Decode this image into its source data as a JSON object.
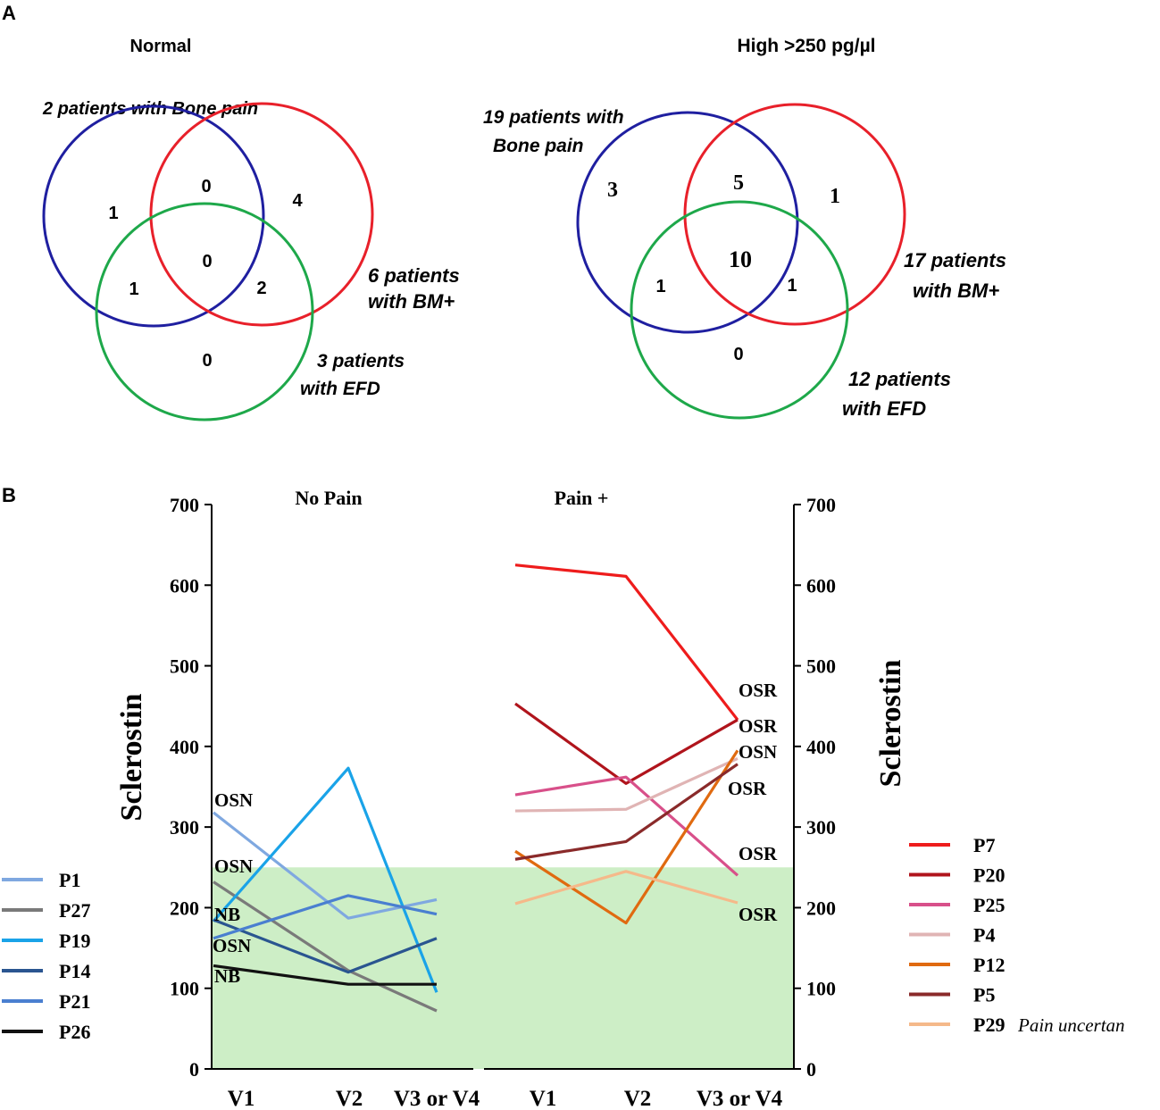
{
  "panel_a": {
    "label": "A",
    "venns": [
      {
        "title": "Normal",
        "bone_pain_label": "2 patients with Bone pain",
        "bm_label": [
          "6 patients",
          "with BM+"
        ],
        "efd_label": [
          "3 patients",
          "with EFD"
        ],
        "regions": {
          "bone_only": "1",
          "bone_bm": "0",
          "bm_only": "4",
          "all_three": "0",
          "bone_efd": "1",
          "bm_efd": "2",
          "efd_only": "0"
        }
      },
      {
        "title": "High >250 pg/µl",
        "bone_pain_label": [
          "19 patients with",
          "Bone pain"
        ],
        "bm_label": [
          "17 patients",
          "with BM+"
        ],
        "efd_label": [
          "12 patients",
          "with EFD"
        ],
        "regions": {
          "bone_only": "3",
          "bone_bm": "5",
          "bm_only": "1",
          "all_three": "10",
          "bone_efd": "1",
          "bm_efd": "1",
          "efd_only": "0"
        }
      }
    ],
    "colors": {
      "bone_pain": "#1f1fa0",
      "bm": "#e8202a",
      "efd": "#1ea84a"
    }
  },
  "panel_b": {
    "label": "B",
    "y_axis_label": "Sclerostin",
    "normal_range_color": "#cdeec6",
    "normal_range_max": 250,
    "legend_left": [
      {
        "id": "P1",
        "color": "#7fa8e0"
      },
      {
        "id": "P27",
        "color": "#7a7a7a"
      },
      {
        "id": "P19",
        "color": "#1aa3e8"
      },
      {
        "id": "P14",
        "color": "#2a5590"
      },
      {
        "id": "P21",
        "color": "#4a7fd0"
      },
      {
        "id": "P26",
        "color": "#111111"
      }
    ],
    "legend_right": [
      {
        "id": "P7",
        "color": "#ee1c1c"
      },
      {
        "id": "P20",
        "color": "#b0141c"
      },
      {
        "id": "P25",
        "color": "#d8508a"
      },
      {
        "id": "P4",
        "color": "#e0b4b4"
      },
      {
        "id": "P12",
        "color": "#e06a10"
      },
      {
        "id": "P5",
        "color": "#8a2a2a"
      },
      {
        "id": "P29",
        "color": "#f5b98a",
        "note": "Pain uncertan"
      }
    ]
  },
  "chart_data": {
    "type": "line",
    "ylabel": "Sclerostin",
    "ylim": [
      0,
      700
    ],
    "yticks": [
      0,
      100,
      200,
      300,
      400,
      500,
      600,
      700
    ],
    "groups": [
      {
        "title": "No Pain",
        "categories": [
          "V1",
          "V2",
          "V3 or V4"
        ],
        "point_labels": [
          "OSN",
          "OSN",
          "NB",
          "OSN",
          "NB"
        ],
        "series": [
          {
            "name": "P1",
            "values": [
              318,
              187,
              210
            ]
          },
          {
            "name": "P27",
            "values": [
              232,
              122,
              72
            ]
          },
          {
            "name": "P19",
            "values": [
              183,
              373,
              95
            ]
          },
          {
            "name": "P14",
            "values": [
              185,
              120,
              162
            ]
          },
          {
            "name": "P21",
            "values": [
              162,
              215,
              192
            ]
          },
          {
            "name": "P26",
            "values": [
              128,
              105,
              105
            ]
          }
        ]
      },
      {
        "title": "Pain +",
        "categories": [
          "V1",
          "V2",
          "V3 or V4"
        ],
        "point_labels": [
          "OSR",
          "OSR",
          "OSN",
          "OSR",
          "OSR",
          "OSR"
        ],
        "series": [
          {
            "name": "P7",
            "values": [
              625,
              611,
              433
            ]
          },
          {
            "name": "P20",
            "values": [
              453,
              354,
              433
            ]
          },
          {
            "name": "P25",
            "values": [
              340,
              362,
              240
            ]
          },
          {
            "name": "P4",
            "values": [
              320,
              322,
              385
            ]
          },
          {
            "name": "P12",
            "values": [
              270,
              181,
              395
            ]
          },
          {
            "name": "P5",
            "values": [
              260,
              282,
              378
            ]
          },
          {
            "name": "P29",
            "values": [
              205,
              245,
              206
            ]
          }
        ]
      }
    ]
  }
}
